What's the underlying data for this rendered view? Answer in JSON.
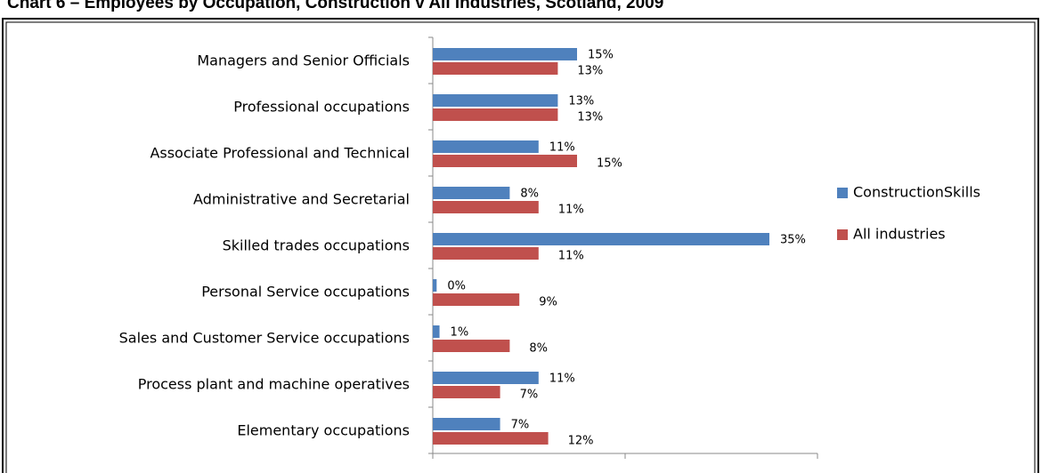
{
  "chart_data": {
    "type": "bar",
    "orientation": "horizontal",
    "title": "Chart 6 – Employees by Occupation, Construction v All industries, Scotland, 2009",
    "categories": [
      "Managers and Senior Officials",
      "Professional occupations",
      "Associate Professional and Technical",
      "Administrative and Secretarial",
      "Skilled trades occupations",
      "Personal Service occupations",
      "Sales and Customer Service occupations",
      "Process plant and machine operatives",
      "Elementary occupations"
    ],
    "series": [
      {
        "name": "ConstructionSkills",
        "color": "#4f81bd",
        "values": [
          15,
          13,
          11,
          8,
          35,
          0.4,
          0.7,
          11,
          7
        ],
        "value_labels": [
          "15%",
          "13%",
          "11%",
          "8%",
          "35%",
          "0%",
          "1%",
          "11%",
          "7%"
        ]
      },
      {
        "name": "All industries",
        "color": "#c0504d",
        "values": [
          13,
          13,
          15,
          11,
          11,
          9,
          8,
          7,
          12
        ],
        "value_labels": [
          "13%",
          "13%",
          "15%",
          "11%",
          "11%",
          "9%",
          "8%",
          "7%",
          "12%"
        ]
      }
    ],
    "xlim": [
      0,
      40
    ],
    "xticks": [
      0,
      20,
      40
    ],
    "legend": "right"
  }
}
